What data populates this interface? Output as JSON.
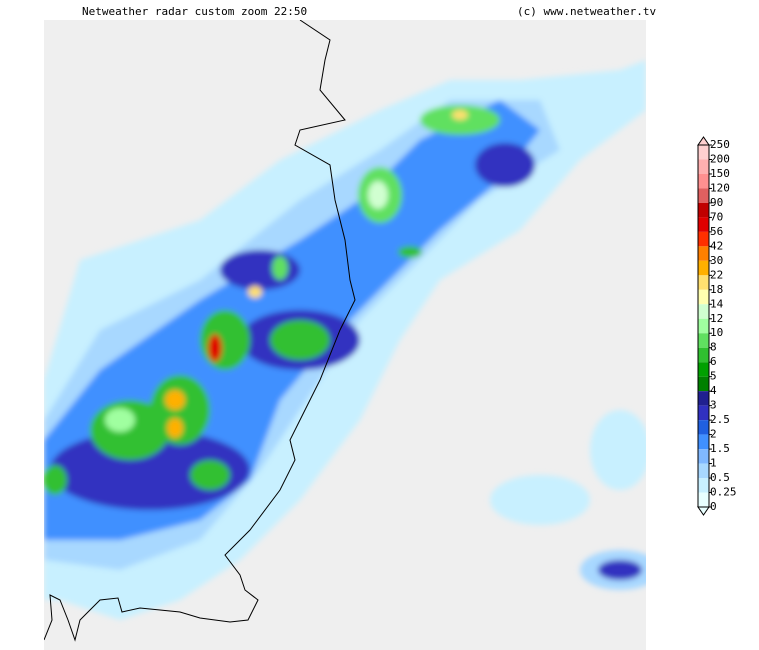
{
  "header": {
    "title": "Netweather radar custom zoom 22:50",
    "copyright": "(c) www.netweather.tv"
  },
  "legend": {
    "labels": [
      250,
      200,
      150,
      120,
      90,
      70,
      56,
      42,
      30,
      22,
      18,
      14,
      12,
      10,
      8,
      6,
      5,
      4,
      3,
      2.5,
      2,
      1.5,
      1,
      0.5,
      0.25,
      0
    ],
    "colors": [
      "#ffd0d0",
      "#ffb0b0",
      "#ff9090",
      "#e06060",
      "#c00000",
      "#e00000",
      "#ff3000",
      "#ff8000",
      "#ffb000",
      "#ffe070",
      "#ffffb0",
      "#d0ffd0",
      "#a0ffa0",
      "#60e060",
      "#30c030",
      "#00a000",
      "#008000",
      "#202090",
      "#3030c0",
      "#2060e0",
      "#4090ff",
      "#80b8ff",
      "#a8d8ff",
      "#c8f0ff",
      "#e8ffff"
    ]
  }
}
